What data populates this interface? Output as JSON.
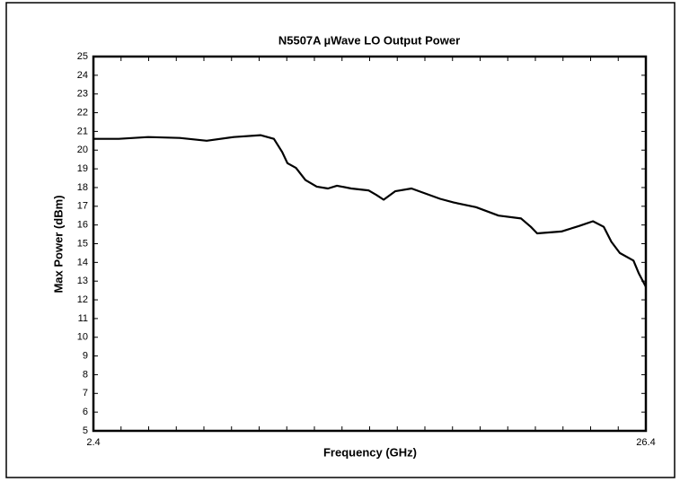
{
  "chart_data": {
    "type": "line",
    "title": "N5507A  µWave LO Output Power",
    "x_label": "Frequency (GHz)",
    "y_label": "Max Power (dBm)",
    "x": [
      2.4,
      3.5,
      4.78,
      6.15,
      7.32,
      8.49,
      9.66,
      10.24,
      10.6,
      10.83,
      11.2,
      11.61,
      12.1,
      12.59,
      12.98,
      13.6,
      14.35,
      14.7,
      15.01,
      15.51,
      16.22,
      17.46,
      18.05,
      19.02,
      20.0,
      20.98,
      21.4,
      21.68,
      22.73,
      23.51,
      24.1,
      24.57,
      24.9,
      25.27,
      25.86,
      26.1,
      26.4
    ],
    "series": [
      {
        "name": "Max Power",
        "color": "#000000",
        "values": [
          20.6,
          20.6,
          20.7,
          20.65,
          20.5,
          20.7,
          20.8,
          20.6,
          19.9,
          19.3,
          19.05,
          18.4,
          18.05,
          17.95,
          18.1,
          17.95,
          17.85,
          17.6,
          17.35,
          17.8,
          17.95,
          17.4,
          17.2,
          16.95,
          16.5,
          16.35,
          15.9,
          15.55,
          15.65,
          15.95,
          16.2,
          15.9,
          15.1,
          14.5,
          14.1,
          13.4,
          12.7
        ]
      }
    ],
    "xlim": [
      2.4,
      26.4
    ],
    "xticks": [
      2.4,
      26.4
    ],
    "ylim": [
      5,
      25
    ],
    "yticks": [
      5,
      6,
      7,
      8,
      9,
      10,
      11,
      12,
      13,
      14,
      15,
      16,
      17,
      18,
      19,
      20,
      21,
      22,
      23,
      24,
      25
    ]
  }
}
